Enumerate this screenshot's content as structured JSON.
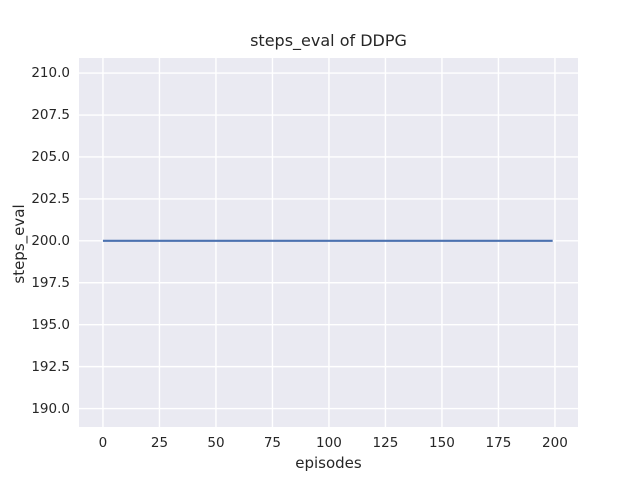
{
  "chart_data": {
    "type": "line",
    "title": "steps_eval of DDPG",
    "xlabel": "episodes",
    "ylabel": "steps_eval",
    "xlim": [
      -10.6,
      210.2
    ],
    "ylim": [
      188.9,
      210.9
    ],
    "x_ticks": [
      0,
      25,
      50,
      75,
      100,
      125,
      150,
      175,
      200
    ],
    "x_tick_labels": [
      "0",
      "25",
      "50",
      "75",
      "100",
      "125",
      "150",
      "175",
      "200"
    ],
    "y_ticks": [
      190.0,
      192.5,
      195.0,
      197.5,
      200.0,
      202.5,
      205.0,
      207.5,
      210.0
    ],
    "y_tick_labels": [
      "190.0",
      "192.5",
      "195.0",
      "197.5",
      "200.0",
      "202.5",
      "205.0",
      "207.5",
      "210.0"
    ],
    "grid": true,
    "legend": null,
    "series": [
      {
        "name": "steps_eval",
        "color": "#4c72b0",
        "x": [
          0,
          199
        ],
        "y": [
          200,
          200
        ]
      }
    ]
  },
  "colors": {
    "figure_bg": "#ffffff",
    "axes_bg": "#eaeaf2",
    "grid": "#ffffff",
    "line": "#4c72b0",
    "text": "#262626"
  }
}
